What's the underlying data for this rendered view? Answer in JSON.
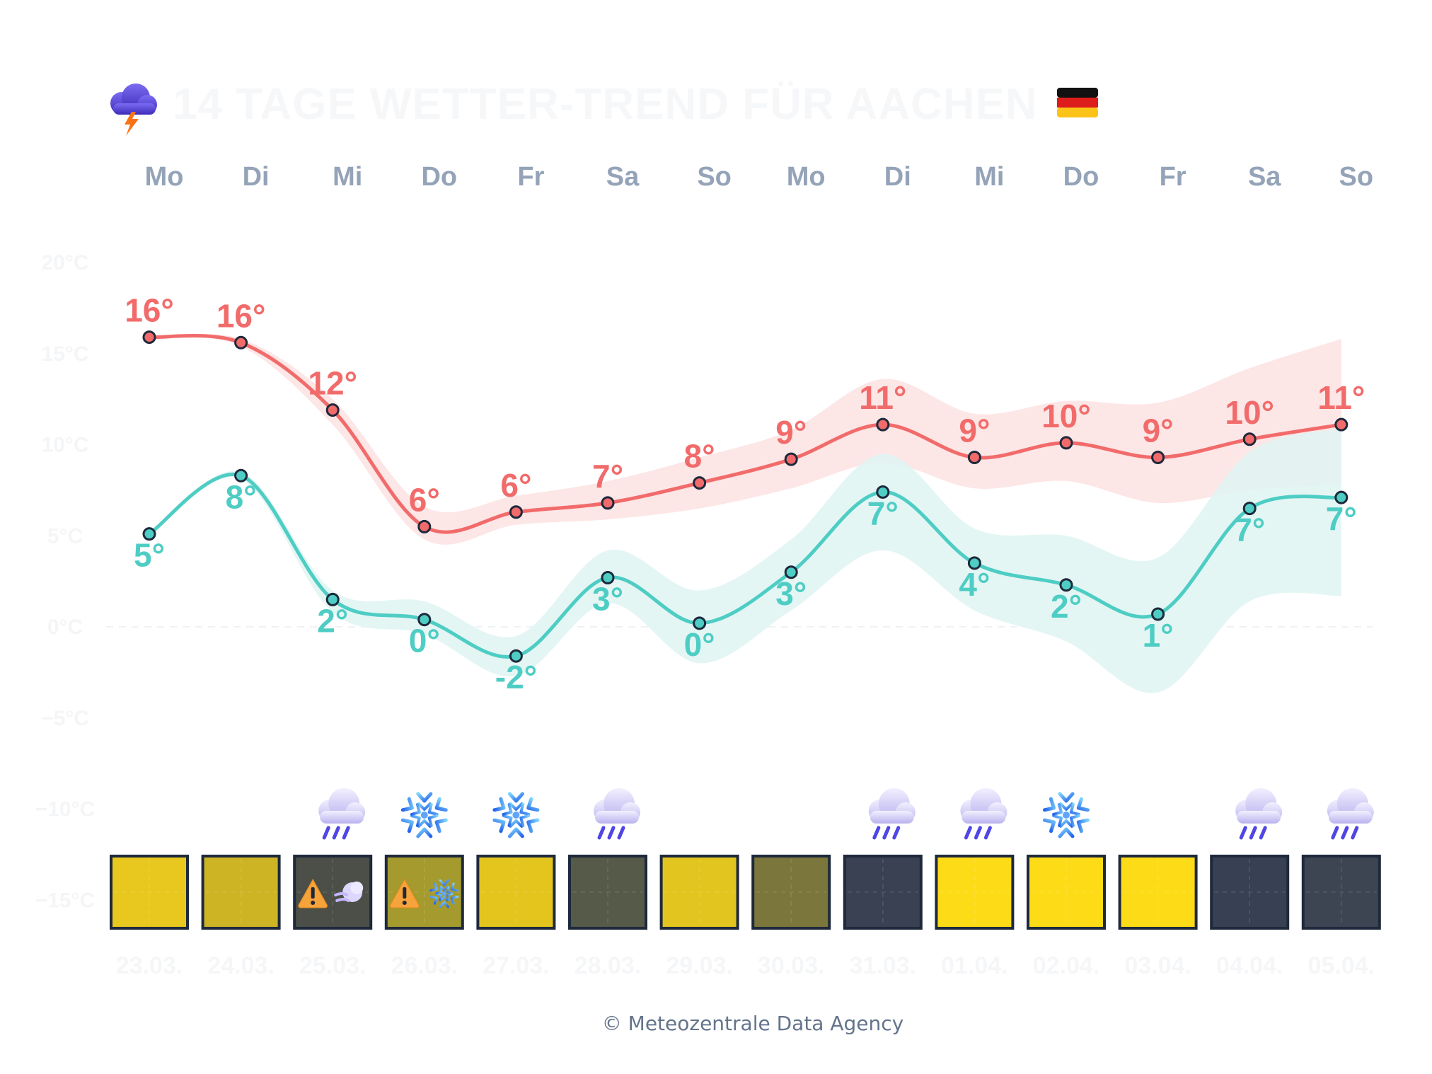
{
  "header": {
    "title": "14 TAGE WETTER-TREND FÜR AACHEN",
    "weather_icon": "thunder-cloud-icon",
    "flag_icon": "germany-flag-icon"
  },
  "footer": {
    "copyright": "© Meteozentrale Data Agency"
  },
  "colors": {
    "max_line": "#f26b6b",
    "max_band": "#fde2e2",
    "min_line": "#4ecdc4",
    "min_band": "#dff5f2",
    "day_label": "#94a3b8"
  },
  "chart_data": {
    "type": "line",
    "title": "14 TAGE WETTER-TREND FÜR AACHEN",
    "x_days": [
      "Mo",
      "Di",
      "Mi",
      "Do",
      "Fr",
      "Sa",
      "So",
      "Mo",
      "Di",
      "Mi",
      "Do",
      "Fr",
      "Sa",
      "So"
    ],
    "x_dates": [
      "23.03.",
      "24.03.",
      "25.03.",
      "26.03.",
      "27.03.",
      "28.03.",
      "29.03.",
      "30.03.",
      "31.03.",
      "01.04.",
      "02.04.",
      "03.04.",
      "04.04.",
      "05.04."
    ],
    "y_ticks": [
      "20°C",
      "15°C",
      "10°C",
      "5°C",
      "0°C",
      "−5°C",
      "−10°C",
      "−15°C"
    ],
    "y_tick_values": [
      20,
      15,
      10,
      5,
      0,
      -5,
      -10,
      -15
    ],
    "ylim": [
      -15,
      20
    ],
    "series": [
      {
        "name": "",
        "key": "max",
        "values": [
          15.9,
          15.6,
          11.9,
          5.5,
          6.3,
          6.8,
          7.9,
          9.2,
          11.1,
          9.3,
          10.1,
          9.3,
          10.3,
          11.1
        ],
        "labels": [
          "16°",
          "16°",
          "12°",
          "6°",
          "6°",
          "7°",
          "8°",
          "9°",
          "11°",
          "9°",
          "10°",
          "9°",
          "10°",
          "11°"
        ],
        "band_upper": [
          15.9,
          15.8,
          12.5,
          6.6,
          7.2,
          8.0,
          9.3,
          10.8,
          13.6,
          11.7,
          12.4,
          12.3,
          14.2,
          15.8
        ],
        "band_lower": [
          15.9,
          15.4,
          11.1,
          4.8,
          5.6,
          5.9,
          6.5,
          7.6,
          9.0,
          7.6,
          8.0,
          6.8,
          7.5,
          7.8
        ]
      },
      {
        "name": "",
        "key": "min",
        "values": [
          5.1,
          8.3,
          1.5,
          0.4,
          -1.6,
          2.7,
          0.2,
          3.0,
          7.4,
          3.5,
          2.3,
          0.7,
          6.5,
          7.1
        ],
        "labels": [
          "5°",
          "8°",
          "2°",
          "0°",
          "-2°",
          "3°",
          "0°",
          "3°",
          "7°",
          "4°",
          "2°",
          "1°",
          "7°",
          "7°"
        ],
        "band_upper": [
          5.1,
          8.5,
          2.0,
          1.4,
          -0.5,
          4.2,
          2.0,
          4.8,
          9.5,
          5.4,
          5.0,
          3.8,
          9.6,
          10.9
        ],
        "band_lower": [
          5.1,
          8.1,
          0.8,
          -0.4,
          -2.7,
          1.3,
          -2.0,
          0.9,
          4.2,
          0.9,
          -0.8,
          -3.6,
          1.4,
          1.7
        ]
      }
    ],
    "weather_icons": [
      "",
      "",
      "rain-cloud-icon",
      "snowflake-icon",
      "snowflake-icon",
      "rain-cloud-icon",
      "",
      "",
      "rain-cloud-icon",
      "rain-cloud-icon",
      "snowflake-icon",
      "",
      "rain-cloud-icon",
      "rain-cloud-icon"
    ],
    "day_boxes": [
      {
        "color": "#e8c81e",
        "warnings": []
      },
      {
        "color": "#cdb424",
        "warnings": []
      },
      {
        "color": "#4b4f47",
        "warnings": [
          "warning-icon",
          "wind-icon"
        ]
      },
      {
        "color": "#a49a2e",
        "warnings": [
          "warning-icon",
          "snowflake-icon"
        ]
      },
      {
        "color": "#e3c51e",
        "warnings": []
      },
      {
        "color": "#565a48",
        "warnings": []
      },
      {
        "color": "#e2c51f",
        "warnings": []
      },
      {
        "color": "#7b763b",
        "warnings": []
      },
      {
        "color": "#394152",
        "warnings": []
      },
      {
        "color": "#fddb17",
        "warnings": []
      },
      {
        "color": "#fddb17",
        "warnings": []
      },
      {
        "color": "#fddb17",
        "warnings": []
      },
      {
        "color": "#384154",
        "warnings": []
      },
      {
        "color": "#3d4452",
        "warnings": []
      }
    ]
  }
}
